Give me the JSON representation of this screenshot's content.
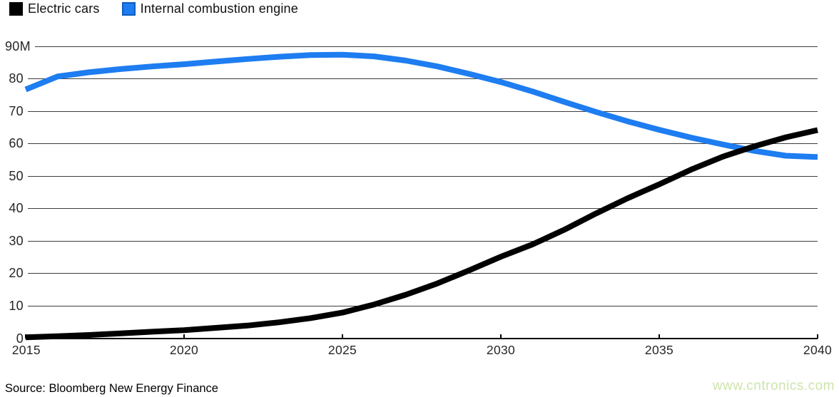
{
  "legend": {
    "items": [
      {
        "label": "Electric cars",
        "color": "#000000"
      },
      {
        "label": "Internal combustion engine",
        "color": "#1e7df0"
      }
    ]
  },
  "chart_data": {
    "type": "line",
    "x": [
      2015,
      2016,
      2017,
      2018,
      2019,
      2020,
      2021,
      2022,
      2023,
      2024,
      2025,
      2026,
      2027,
      2028,
      2029,
      2030,
      2031,
      2032,
      2033,
      2034,
      2035,
      2036,
      2037,
      2038,
      2039,
      2040
    ],
    "series": [
      {
        "name": "Electric cars",
        "color": "#000000",
        "values": [
          0.4,
          0.7,
          1.1,
          1.6,
          2.1,
          2.6,
          3.3,
          4.0,
          5.0,
          6.3,
          8.0,
          10.5,
          13.5,
          17.0,
          21.0,
          25.2,
          29.0,
          33.5,
          38.5,
          43.2,
          47.5,
          52.0,
          56.0,
          59.2,
          62.0,
          64.2
        ]
      },
      {
        "name": "Internal combustion engine",
        "color": "#1e7df0",
        "values": [
          76.7,
          80.7,
          82.0,
          83.0,
          83.8,
          84.5,
          85.3,
          86.1,
          86.8,
          87.3,
          87.4,
          86.9,
          85.6,
          83.8,
          81.5,
          79.0,
          76.1,
          72.9,
          69.8,
          66.9,
          64.3,
          61.9,
          59.8,
          57.8,
          56.3,
          55.9
        ]
      }
    ],
    "title": "",
    "xlabel": "",
    "ylabel": "",
    "unit": "M",
    "ylim": [
      0,
      90
    ],
    "xlim": [
      2015,
      2040
    ],
    "ytick_labels": [
      "90M",
      "80",
      "70",
      "60",
      "50",
      "40",
      "30",
      "20",
      "10",
      "0"
    ],
    "ytick_values": [
      90,
      80,
      70,
      60,
      50,
      40,
      30,
      20,
      10,
      0
    ],
    "xtick_labels": [
      "2015",
      "2020",
      "2025",
      "2030",
      "2035",
      "2040"
    ],
    "xtick_values": [
      2015,
      2020,
      2025,
      2030,
      2035,
      2040
    ],
    "grid": "horizontal",
    "legend_position": "top-left"
  },
  "footer": {
    "source": "Source: Bloomberg New Energy Finance",
    "watermark": "www.cntronics.com",
    "watermark_color": "#cde4ab"
  }
}
